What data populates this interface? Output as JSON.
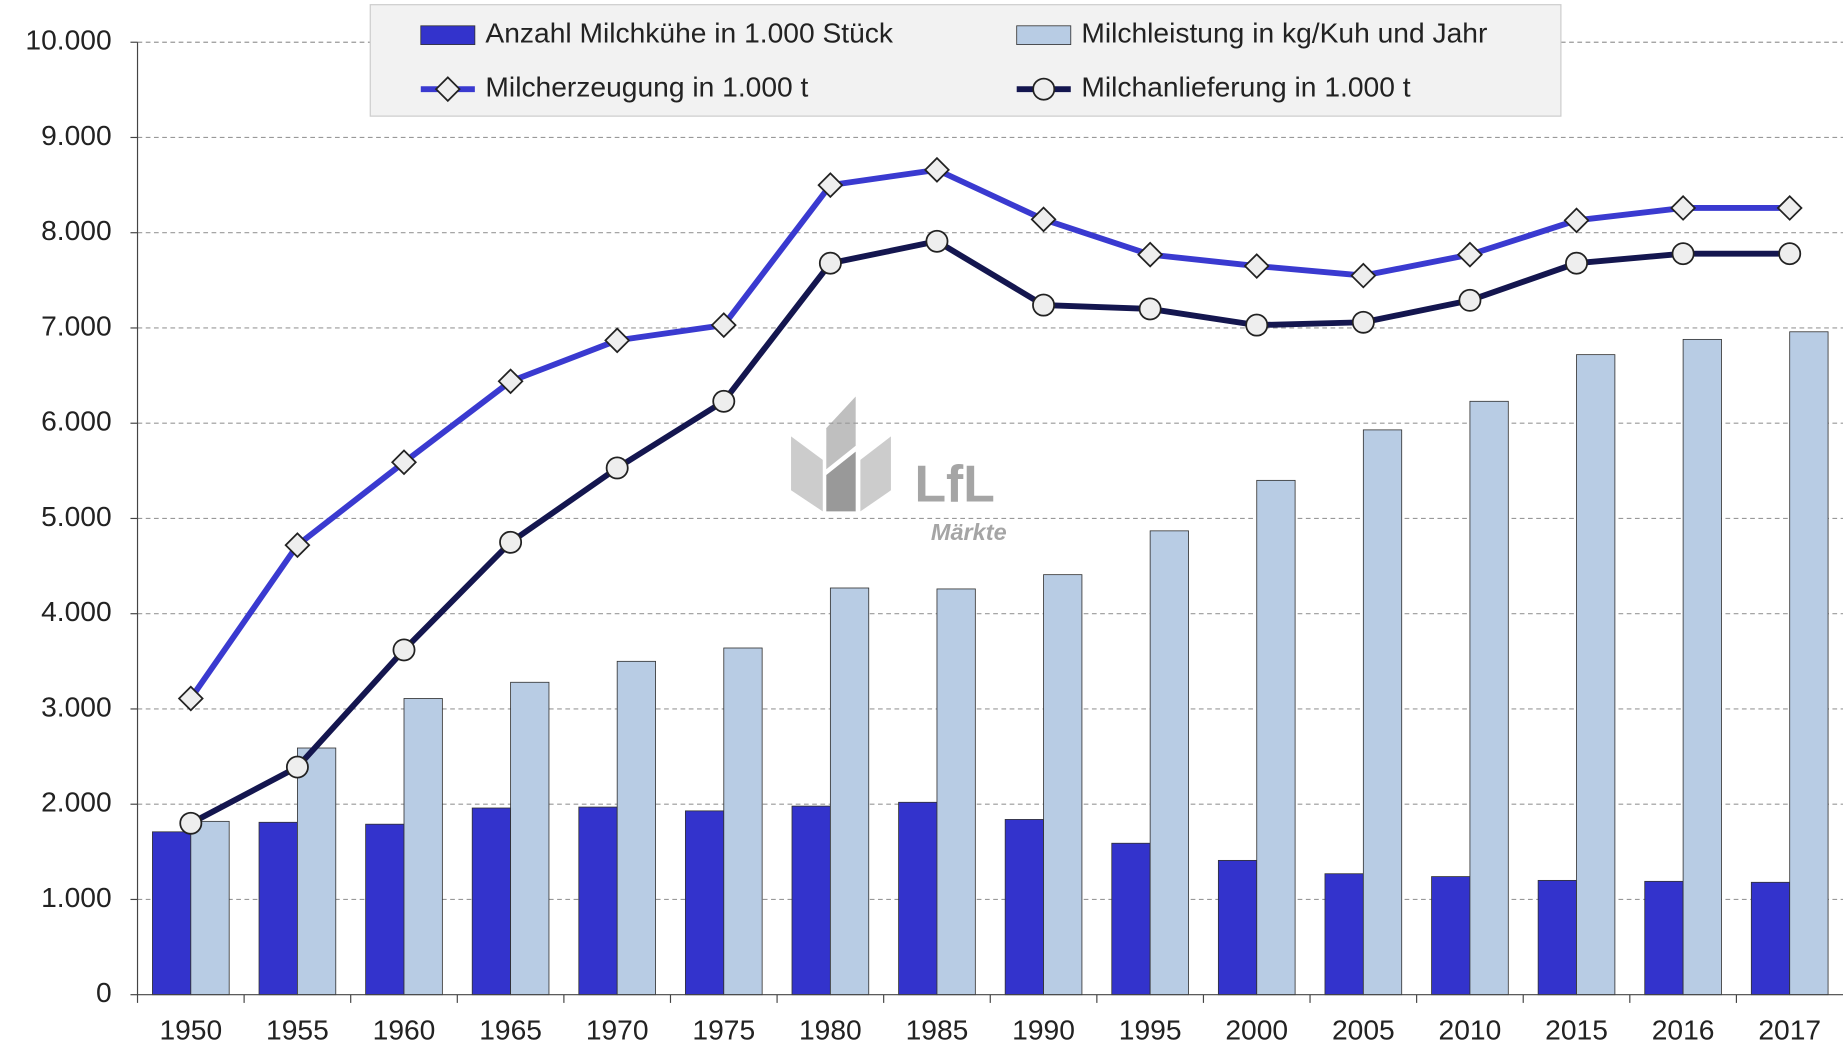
{
  "chart_data": {
    "type": "bar_line",
    "categories": [
      "1950",
      "1955",
      "1960",
      "1965",
      "1970",
      "1975",
      "1980",
      "1985",
      "1990",
      "1995",
      "2000",
      "2005",
      "2010",
      "2015",
      "2016",
      "2017"
    ],
    "series": [
      {
        "name": "Anzahl Milchkühe in 1.000 Stück",
        "kind": "bar",
        "color": "#3333cc",
        "values": [
          1710,
          1810,
          1790,
          1960,
          1970,
          1930,
          1980,
          2020,
          1840,
          1590,
          1410,
          1270,
          1240,
          1200,
          1190,
          1180
        ]
      },
      {
        "name": "Milchleistung in kg/Kuh und Jahr",
        "kind": "bar",
        "color": "#b8cce4",
        "values": [
          1820,
          2590,
          3110,
          3280,
          3500,
          3640,
          4270,
          4260,
          4410,
          4870,
          5400,
          5930,
          6230,
          6720,
          6880,
          6960
        ]
      },
      {
        "name": "Milcherzeugung in 1.000 t",
        "kind": "line",
        "marker": "diamond",
        "color": "#3a3ad0",
        "values": [
          3110,
          4720,
          5590,
          6440,
          6870,
          7030,
          8500,
          8660,
          8140,
          7770,
          7650,
          7550,
          7770,
          8130,
          8260,
          8260
        ]
      },
      {
        "name": "Milchanlieferung in 1.000 t",
        "kind": "line",
        "marker": "circle",
        "color": "#14164f",
        "values": [
          1800,
          2390,
          3620,
          4750,
          5530,
          6230,
          7680,
          7910,
          7240,
          7200,
          7030,
          7060,
          7290,
          7680,
          7780,
          7780
        ]
      }
    ],
    "ylim": [
      0,
      10000
    ],
    "yticks": [
      0,
      {
        "value": 1000,
        "label": "1.000"
      },
      {
        "value": 2000,
        "label": "2.000"
      },
      {
        "value": 3000,
        "label": "3.000"
      },
      {
        "value": 4000,
        "label": "4.000"
      },
      {
        "value": 5000,
        "label": "5.000"
      },
      {
        "value": 6000,
        "label": "6.000"
      },
      {
        "value": 7000,
        "label": "7.000"
      },
      {
        "value": 8000,
        "label": "8.000"
      },
      {
        "value": 9000,
        "label": "9.000"
      },
      {
        "value": 10000,
        "label": "10.000"
      }
    ],
    "grid": true,
    "logo": {
      "name": "LfL",
      "subtitle": "Märkte"
    }
  }
}
